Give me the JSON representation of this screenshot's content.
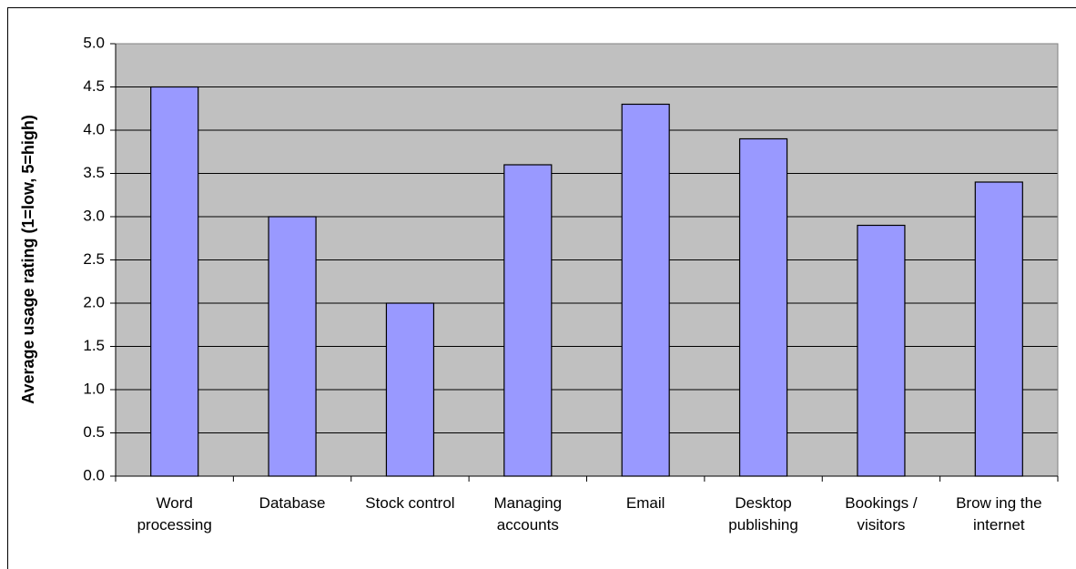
{
  "chart_data": {
    "type": "bar",
    "y_label": "Average usage rating (1=low, 5=high)",
    "categories": [
      "Word processing",
      "Database",
      "Stock control",
      "Managing accounts",
      "Email",
      "Desktop publishing",
      "Bookings / visitors",
      "Brow ing the internet"
    ],
    "values": [
      4.5,
      3.0,
      2.0,
      3.6,
      4.3,
      3.9,
      2.9,
      3.4
    ],
    "color": "#9999ff",
    "ylim": [
      0,
      5
    ],
    "yticks": [
      {
        "value": 0,
        "label": "0.0"
      },
      {
        "value": 0.5,
        "label": "0.5"
      },
      {
        "value": 1,
        "label": "1.0"
      },
      {
        "value": 1.5,
        "label": "1.5"
      },
      {
        "value": 2,
        "label": "2.0"
      },
      {
        "value": 2.5,
        "label": "2.5"
      },
      {
        "value": 3,
        "label": "3.0"
      },
      {
        "value": 3.5,
        "label": "3.5"
      },
      {
        "value": 4,
        "label": "4.0"
      },
      {
        "value": 4.5,
        "label": "4.5"
      },
      {
        "value": 5,
        "label": "5.0"
      }
    ],
    "grid": true
  }
}
